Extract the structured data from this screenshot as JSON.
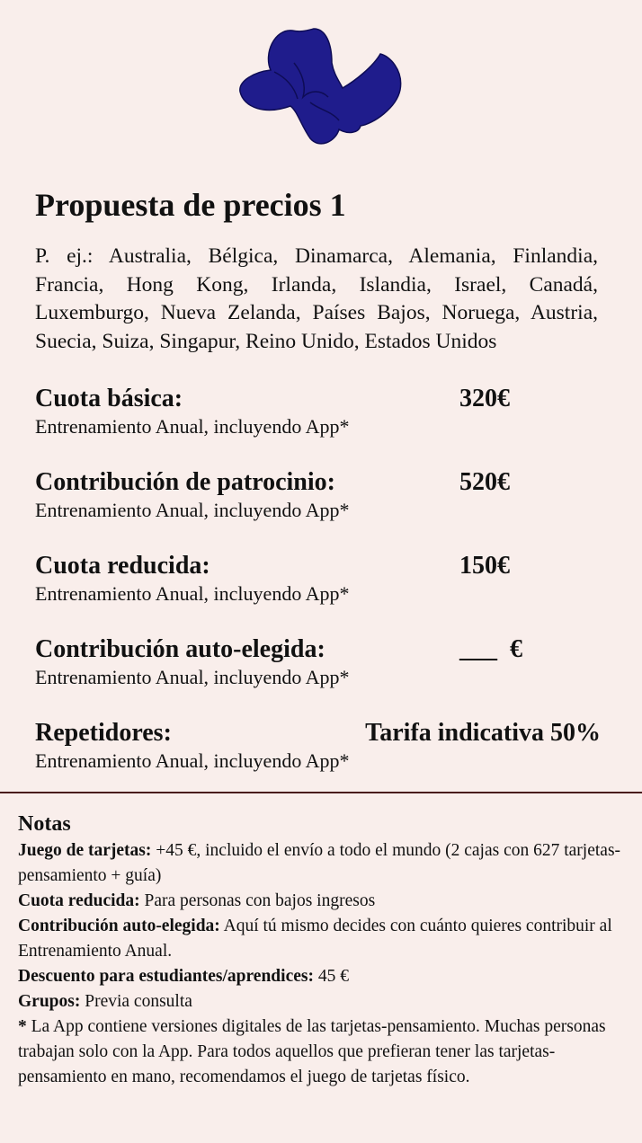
{
  "title": "Propuesta de precios 1",
  "intro": "P. ej.: Australia, Bélgica, Dinamarca, Alemania, Finlandia, Francia, Hong Kong, Irlanda, Islandia, Israel, Canadá, Luxemburgo, Nueva Zelanda, Países Bajos, Noruega, Austria, Suecia, Suiza, Singapur, Reino Unido, Estados Unidos",
  "prices": [
    {
      "label": "Cuota básica:",
      "price": "320€",
      "description": "Entrenamiento Anual, incluyendo App*"
    },
    {
      "label": "Contribución de patrocinio:",
      "price": "520€",
      "description": "Entrenamiento Anual, incluyendo App*"
    },
    {
      "label": "Cuota reducida:",
      "price": "150€",
      "description": "Entrenamiento Anual, incluyendo App*"
    },
    {
      "label": "Contribución auto-elegida:",
      "price": "___  €",
      "description": "Entrenamiento Anual, incluyendo App*"
    },
    {
      "label": "Repetidores:",
      "price": "Tarifa indicativa 50%",
      "description": "Entrenamiento Anual, incluyendo App*"
    }
  ],
  "notes": {
    "title": "Notas",
    "items": [
      {
        "label": "Juego de tarjetas:",
        "text": "+45 €, incluido el envío a todo el mundo (2 cajas con 627 tarjetas-pensamiento + guía)"
      },
      {
        "label": "Cuota reducida:",
        "text": "Para personas con bajos ingresos"
      },
      {
        "label": "Contribución auto-elegida:",
        "text": "Aquí tú mismo decides con cuánto quieres contribuir al Entrenamiento Anual."
      },
      {
        "label": "Descuento para estudiantes/aprendices:",
        "text": "45 €"
      },
      {
        "label": "Grupos:",
        "text": "Previa consulta"
      },
      {
        "label": "*",
        "text": "La App contiene versiones digitales de las tarjetas-pensamiento. Muchas personas trabajan solo con la App. Para todos aquellos que prefieran tener las tarjetas-pensamiento en mano, recomendamos el juego de tarjetas físico."
      }
    ]
  }
}
